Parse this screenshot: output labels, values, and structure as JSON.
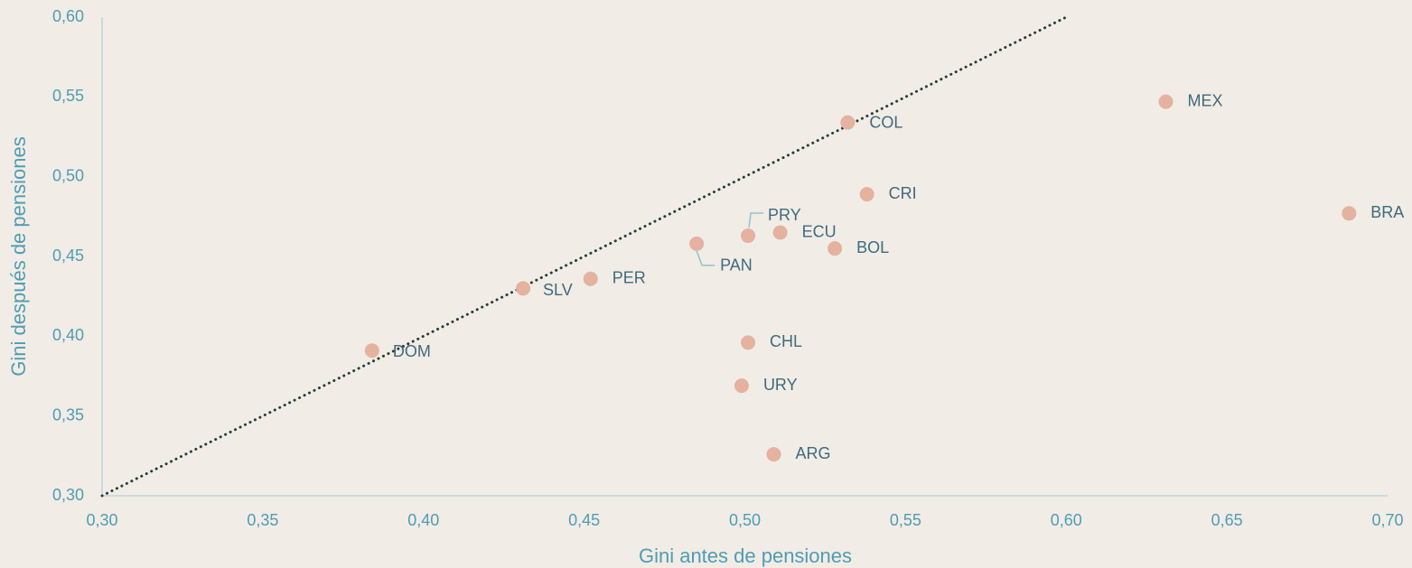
{
  "chart_data": {
    "type": "scatter",
    "x_label": "Gini antes de pensiones",
    "y_label": "Gini después de pensiones",
    "color": "#e4b29f",
    "labels": [
      "MEX",
      "BRA",
      "COL",
      "CRI",
      "PRY",
      "ECU",
      "BOL",
      "PAN",
      "PER",
      "SLV",
      "DOM",
      "CHL",
      "URY",
      "ARG"
    ],
    "x": [
      0.631,
      0.688,
      0.532,
      0.538,
      0.501,
      0.511,
      0.528,
      0.485,
      0.452,
      0.431,
      0.384,
      0.501,
      0.499,
      0.509
    ],
    "values": [
      0.547,
      0.477,
      0.534,
      0.489,
      0.463,
      0.465,
      0.455,
      0.458,
      0.436,
      0.43,
      0.391,
      0.396,
      0.369,
      0.326
    ],
    "reference_line": {
      "x": [
        0.3,
        0.6
      ],
      "values": [
        0.3,
        0.6
      ],
      "color": "#2b3a3a"
    },
    "xlim": [
      0.3,
      0.7
    ],
    "ylim": [
      0.3,
      0.6
    ],
    "xticks": [
      {
        "value": 0.3,
        "label": "0,30"
      },
      {
        "value": 0.35,
        "label": "0,35"
      },
      {
        "value": 0.4,
        "label": "0,40"
      },
      {
        "value": 0.45,
        "label": "0,45"
      },
      {
        "value": 0.5,
        "label": "0,50"
      },
      {
        "value": 0.55,
        "label": "0,55"
      },
      {
        "value": 0.6,
        "label": "0,60"
      },
      {
        "value": 0.65,
        "label": "0,65"
      },
      {
        "value": 0.7,
        "label": "0,70"
      }
    ],
    "yticks": [
      {
        "value": 0.3,
        "label": "0,30"
      },
      {
        "value": 0.35,
        "label": "0,35"
      },
      {
        "value": 0.4,
        "label": "0,40"
      },
      {
        "value": 0.45,
        "label": "0,45"
      },
      {
        "value": 0.5,
        "label": "0,50"
      },
      {
        "value": 0.55,
        "label": "0,55"
      },
      {
        "value": 0.6,
        "label": "0,60"
      }
    ],
    "grid": false
  }
}
